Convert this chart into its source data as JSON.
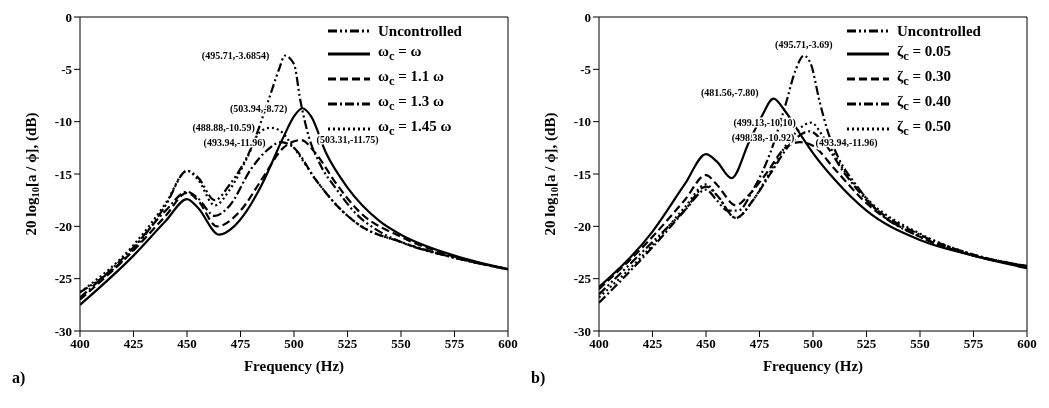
{
  "chart_data": [
    {
      "type": "line",
      "xlabel": "Frequency (Hz)",
      "ylabel": "20 log$_{10}$[a / ϕ], (dB)",
      "xlim": [
        400,
        600
      ],
      "xticks": [
        400,
        425,
        450,
        475,
        500,
        525,
        550,
        575,
        600
      ],
      "ylim": [
        -30,
        0
      ],
      "yticks": [
        -30,
        -25,
        -20,
        -15,
        -10,
        -5,
        0
      ],
      "grid": false,
      "legend": "top right",
      "marker": "none",
      "series": [
        {
          "name": "Uncontrolled",
          "color": "#000000",
          "line_style": "dashdotdot",
          "x": [
            400,
            425,
            440,
            450,
            455,
            463,
            470,
            480,
            488,
            493,
            495.71,
            500,
            503,
            507,
            512,
            520,
            530,
            540,
            550,
            575,
            600
          ],
          "values": [
            -26.3,
            -22.2,
            -18,
            -14.7,
            -15.3,
            -17.5,
            -16,
            -12.5,
            -8,
            -5,
            -3.6854,
            -4.5,
            -8,
            -11.5,
            -14,
            -16.5,
            -19,
            -20.5,
            -21.5,
            -23,
            -24.1
          ]
        },
        {
          "name": "ω$_{c}$ = ω",
          "color": "#000000",
          "line_style": "solid",
          "x": [
            400,
            425,
            440,
            450,
            455,
            465,
            472,
            478,
            485,
            495,
            500,
            503.94,
            508,
            515,
            525,
            540,
            550,
            575,
            600
          ],
          "values": [
            -27.5,
            -22.8,
            -19.5,
            -17.4,
            -18.2,
            -20.8,
            -20,
            -18.5,
            -16,
            -11.5,
            -9.5,
            -8.72,
            -9.5,
            -13,
            -16.3,
            -19.5,
            -20.8,
            -22.8,
            -24.1
          ]
        },
        {
          "name": "ω$_{c}$ = 1.1 ω",
          "color": "#000000",
          "line_style": "dashed",
          "x": [
            400,
            425,
            440,
            450,
            455,
            464,
            475,
            485,
            495,
            503.31,
            510,
            520,
            530,
            550,
            575,
            600
          ],
          "values": [
            -27,
            -22.3,
            -19,
            -16.8,
            -17.5,
            -20,
            -18.5,
            -15.5,
            -12.5,
            -11.75,
            -13,
            -16,
            -18.5,
            -21,
            -22.9,
            -24.1
          ]
        },
        {
          "name": "ω$_{c}$ = 1.3 ω",
          "color": "#000000",
          "line_style": "dashdot",
          "x": [
            400,
            425,
            440,
            450,
            455,
            463,
            470,
            480,
            487,
            493.94,
            500,
            510,
            520,
            530,
            550,
            575,
            600
          ],
          "values": [
            -26.8,
            -22,
            -18.5,
            -16.7,
            -17.3,
            -19,
            -18,
            -14.5,
            -12.8,
            -11.96,
            -12.5,
            -15.5,
            -18,
            -19.8,
            -21.5,
            -23,
            -24.1
          ]
        },
        {
          "name": "ω$_{c}$ = 1.45 ω",
          "color": "#000000",
          "line_style": "dotted",
          "x": [
            400,
            425,
            440,
            450,
            455,
            463,
            470,
            478,
            484,
            488.88,
            493,
            500,
            510,
            520,
            530,
            550,
            575,
            600
          ],
          "values": [
            -26.3,
            -21.8,
            -17.8,
            -14.7,
            -15.5,
            -18,
            -16.5,
            -13.5,
            -11,
            -10.59,
            -10.8,
            -12.5,
            -15.5,
            -18,
            -19.8,
            -21.5,
            -23,
            -24.1
          ]
        }
      ],
      "annotations": [
        {
          "text": "(495.71,-3.6854)",
          "x": 495.71,
          "y": -3.6854
        },
        {
          "text": "(503.94,-8.72)",
          "x": 503.94,
          "y": -8.72
        },
        {
          "text": "(488.88,-10.59)",
          "x": 488.88,
          "y": -10.59
        },
        {
          "text": "(493.94,-11.96)",
          "x": 493.94,
          "y": -11.96
        },
        {
          "text": "(503.31,-11.75)",
          "x": 503.31,
          "y": -11.75
        },
        "a)"
      ]
    },
    {
      "type": "line",
      "xlabel": "Frequency (Hz)",
      "ylabel": "20 log$_{10}$[a / ϕ], (dB)",
      "xlim": [
        400,
        600
      ],
      "xticks": [
        400,
        425,
        450,
        475,
        500,
        525,
        550,
        575,
        600
      ],
      "ylim": [
        -30,
        0
      ],
      "yticks": [
        -30,
        -25,
        -20,
        -15,
        -10,
        -5,
        0
      ],
      "grid": false,
      "legend": "top right",
      "marker": "none",
      "series": [
        {
          "name": "Uncontrolled",
          "color": "#000000",
          "line_style": "dashdotdot",
          "x": [
            400,
            425,
            440,
            450,
            455,
            460,
            465,
            472,
            480,
            487,
            492,
            495.71,
            499,
            503,
            507,
            512,
            520,
            530,
            550,
            575,
            600
          ],
          "values": [
            -26.5,
            -21.5,
            -18.5,
            -16.5,
            -17.5,
            -18.5,
            -18.5,
            -16.5,
            -13,
            -8.5,
            -5,
            -3.69,
            -4.5,
            -8,
            -11,
            -13.5,
            -16,
            -18.5,
            -21,
            -22.8,
            -23.8
          ]
        },
        {
          "name": "ζ$_{c}$ = 0.05",
          "color": "#000000",
          "line_style": "solid",
          "x": [
            400,
            425,
            440,
            450,
            455,
            462,
            470,
            476,
            481.56,
            487,
            495,
            500,
            510,
            525,
            550,
            575,
            600
          ],
          "values": [
            -25.8,
            -20.5,
            -16,
            -13.1,
            -13.8,
            -15.4,
            -12,
            -9.5,
            -7.8,
            -9,
            -11.5,
            -13,
            -15.5,
            -18.5,
            -21.3,
            -22.8,
            -24
          ]
        },
        {
          "name": "ζ$_{c}$ = 0.30",
          "color": "#000000",
          "line_style": "dashed",
          "x": [
            400,
            425,
            440,
            450,
            455,
            464,
            470,
            478,
            487,
            493.94,
            500,
            510,
            525,
            550,
            575,
            600
          ],
          "values": [
            -26,
            -21,
            -17.5,
            -15.1,
            -16,
            -18,
            -17,
            -15,
            -12.5,
            -11.96,
            -12.3,
            -14.5,
            -17.8,
            -21,
            -22.8,
            -23.8
          ]
        },
        {
          "name": "ζ$_{c}$ = 0.40",
          "color": "#000000",
          "line_style": "dashdot",
          "x": [
            400,
            425,
            440,
            450,
            455,
            464,
            472,
            480,
            490,
            498.38,
            505,
            515,
            525,
            550,
            575,
            600
          ],
          "values": [
            -27.3,
            -22,
            -18.5,
            -16.2,
            -17,
            -19.2,
            -17.5,
            -15,
            -12,
            -10.92,
            -12,
            -15,
            -17.5,
            -20.8,
            -22.7,
            -23.8
          ]
        },
        {
          "name": "ζ$_{c}$ = 0.50",
          "color": "#000000",
          "line_style": "dotted",
          "x": [
            400,
            425,
            440,
            450,
            455,
            464,
            472,
            480,
            490,
            499.13,
            505,
            515,
            525,
            550,
            575,
            600
          ],
          "values": [
            -26.8,
            -21.8,
            -18.2,
            -16,
            -17,
            -19.2,
            -17.5,
            -14.8,
            -11.5,
            -10.1,
            -11.5,
            -14.8,
            -17.3,
            -20.7,
            -22.7,
            -23.8
          ]
        }
      ],
      "annotations": [
        {
          "text": "(495.71,-3.69)",
          "x": 495.71,
          "y": -3.69
        },
        {
          "text": "(481.56,-7.80)",
          "x": 481.56,
          "y": -7.8
        },
        {
          "text": "(499.13,-10,10)",
          "x": 499.13,
          "y": -10.1
        },
        {
          "text": "(498.38,-10.92)",
          "x": 498.38,
          "y": -10.92
        },
        {
          "text": "(493.94,-11.96)",
          "x": 493.94,
          "y": -11.96
        },
        "b)"
      ]
    }
  ]
}
